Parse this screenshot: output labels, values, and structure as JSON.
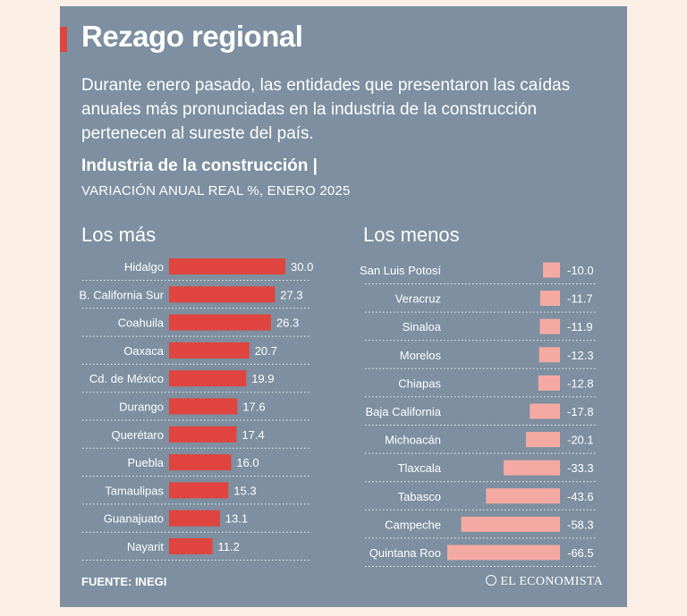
{
  "title": "Rezago regional",
  "subtitle": "Durante enero pasado, las entidades que presentaron las caídas anuales más pronunciadas en la industria de la construcción pertenecen al sureste del país.",
  "chart_title": "Industria de la construcción |",
  "chart_subtitle": "VARIACIÓN ANUAL REAL %, ENERO 2025",
  "source": "FUENTE: INEGI",
  "brand": "EL ECONOMISTA",
  "colors": {
    "background": "#7d8fa0",
    "positive_bar": "#e0443e",
    "negative_bar": "#f4aaa3",
    "accent": "#e0443e",
    "page": "#fbefe6"
  },
  "chart_data": [
    {
      "type": "bar",
      "orientation": "horizontal",
      "panel_label": "Los más",
      "categories": [
        "Hidalgo",
        "B. California Sur",
        "Coahuila",
        "Oaxaca",
        "Cd. de México",
        "Durango",
        "Querétaro",
        "Puebla",
        "Tamaulipas",
        "Guanajuato",
        "Nayarit"
      ],
      "values": [
        30.0,
        27.3,
        26.3,
        20.7,
        19.9,
        17.6,
        17.4,
        16.0,
        15.3,
        13.1,
        11.2
      ],
      "value_labels": [
        "30.0",
        "27.3",
        "26.3",
        "20.7",
        "19.9",
        "17.6",
        "17.4",
        "16.0",
        "15.3",
        "13.1",
        "11.2"
      ],
      "xlim": [
        0,
        30
      ]
    },
    {
      "type": "bar",
      "orientation": "horizontal",
      "panel_label": "Los menos",
      "categories": [
        "San Luis Potosí",
        "Veracruz",
        "Sinaloa",
        "Morelos",
        "Chiapas",
        "Baja California",
        "Michoacán",
        "Tlaxcala",
        "Tabasco",
        "Campeche",
        "Quintana Roo"
      ],
      "values": [
        -10.0,
        -11.7,
        -11.9,
        -12.3,
        -12.8,
        -17.8,
        -20.1,
        -33.3,
        -43.6,
        -58.3,
        -66.5
      ],
      "value_labels": [
        "-10.0",
        "-11.7",
        "-11.9",
        "-12.3",
        "-12.8",
        "-17.8",
        "-20.1",
        "-33.3",
        "-43.6",
        "-58.3",
        "-66.5"
      ],
      "xlim": [
        -66.5,
        0
      ]
    }
  ]
}
